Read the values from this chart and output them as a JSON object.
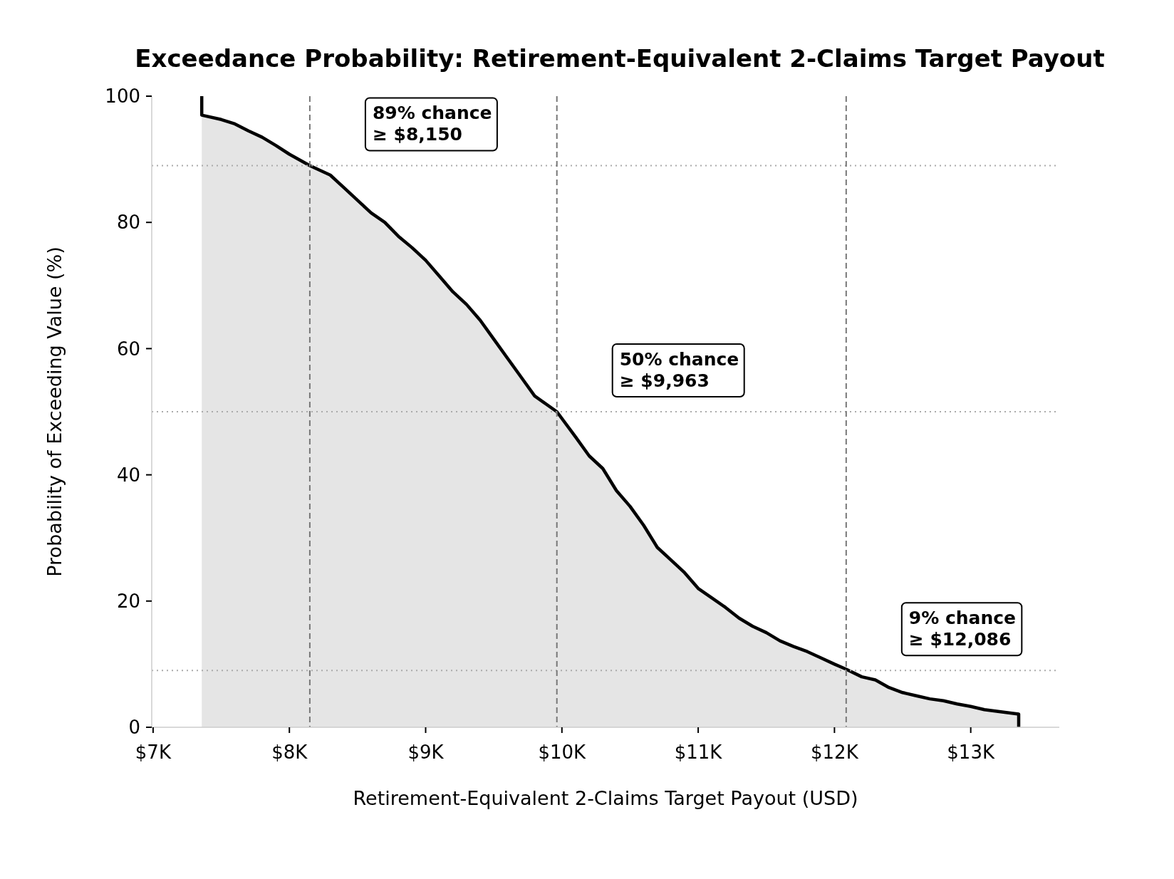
{
  "chart_data": {
    "type": "area",
    "title": "Exceedance Probability: Retirement-Equivalent 2-Claims Target Payout",
    "xlabel": "Retirement-Equivalent 2-Claims Target Payout (USD)",
    "ylabel": "Probability of Exceeding Value (%)",
    "xlim": [
      6990,
      13650
    ],
    "ylim": [
      0,
      100
    ],
    "xticks": [
      {
        "value": 7000,
        "label": "$7K"
      },
      {
        "value": 8000,
        "label": "$8K"
      },
      {
        "value": 9000,
        "label": "$9K"
      },
      {
        "value": 10000,
        "label": "$10K"
      },
      {
        "value": 11000,
        "label": "$11K"
      },
      {
        "value": 12000,
        "label": "$12K"
      },
      {
        "value": 13000,
        "label": "$13K"
      }
    ],
    "yticks": [
      0,
      20,
      40,
      60,
      80,
      100
    ],
    "grid": false,
    "series": [
      {
        "color": "#000000",
        "x": [
          7357,
          7357,
          7500,
          7600,
          7700,
          7800,
          7900,
          8000,
          8150,
          8300,
          8400,
          8500,
          8600,
          8700,
          8800,
          8900,
          9000,
          9100,
          9200,
          9300,
          9400,
          9500,
          9600,
          9700,
          9800,
          9963,
          10100,
          10200,
          10300,
          10400,
          10500,
          10600,
          10700,
          10800,
          10900,
          11000,
          11100,
          11200,
          11300,
          11400,
          11500,
          11600,
          11700,
          11800,
          11900,
          12000,
          12086,
          12200,
          12300,
          12400,
          12500,
          12600,
          12700,
          12800,
          12900,
          13000,
          13100,
          13200,
          13352,
          13352
        ],
        "values": [
          100,
          97,
          96.3,
          95.6,
          94.5,
          93.5,
          92.2,
          90.8,
          89,
          87.5,
          85.5,
          83.5,
          81.5,
          80,
          77.8,
          76,
          74,
          71.5,
          69,
          67,
          64.5,
          61.5,
          58.5,
          55.5,
          52.5,
          50,
          46,
          43,
          41,
          37.5,
          35,
          32,
          28.5,
          26.5,
          24.5,
          22,
          20.5,
          19,
          17.3,
          16,
          15,
          13.7,
          12.8,
          12,
          11,
          10,
          9.2,
          8,
          7.5,
          6.3,
          5.5,
          5,
          4.5,
          4.2,
          3.7,
          3.3,
          2.8,
          2.5,
          2.1,
          0
        ]
      }
    ],
    "ref_lines": [
      {
        "axis": "y",
        "value": 89,
        "color": "#aaaaaa",
        "line_style": "dotted"
      },
      {
        "axis": "y",
        "value": 50,
        "color": "#aaaaaa",
        "line_style": "dotted"
      },
      {
        "axis": "y",
        "value": 9,
        "color": "#aaaaaa",
        "line_style": "dotted"
      },
      {
        "axis": "x",
        "value": 8150,
        "color": "#777777",
        "line_style": "dashed"
      },
      {
        "axis": "x",
        "value": 9963,
        "color": "#777777",
        "line_style": "dashed"
      },
      {
        "axis": "x",
        "value": 12086,
        "color": "#777777",
        "line_style": "dashed"
      }
    ],
    "annotations": [
      "89% chance\n≥ $8,150",
      "50% chance\n≥ $9,963",
      "9% chance\n≥ $12,086"
    ]
  }
}
